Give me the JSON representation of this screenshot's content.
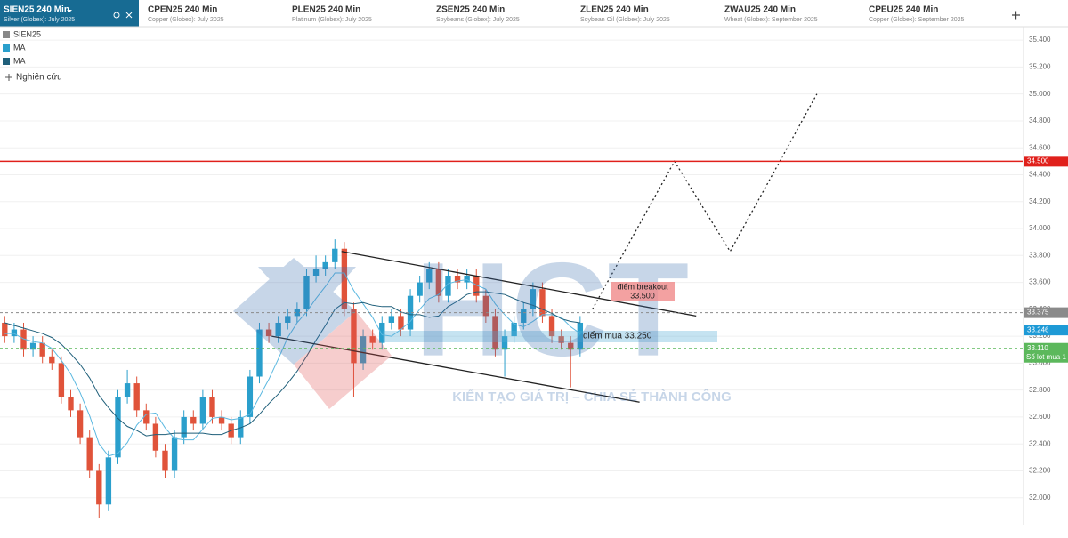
{
  "tabs": [
    {
      "title": "SIEN25 240 Min",
      "subtitle": "Silver (Globex): July 2025"
    },
    {
      "title": "CPEN25 240 Min",
      "subtitle": "Copper (Globex): July 2025"
    },
    {
      "title": "PLEN25 240 Min",
      "subtitle": "Platinum (Globex): July 2025"
    },
    {
      "title": "ZSEN25 240 Min",
      "subtitle": "Soybeans (Globex): July 2025"
    },
    {
      "title": "ZLEN25 240 Min",
      "subtitle": "Soybean Oil (Globex): July 2025"
    },
    {
      "title": "ZWAU25 240 Min",
      "subtitle": "Wheat (Globex): September 2025"
    },
    {
      "title": "CPEU25 240 Min",
      "subtitle": "Copper (Globex): September 2025"
    }
  ],
  "legend_panel": [
    "SIEN25",
    "MA",
    "MA"
  ],
  "research_button": "Nghiên cứu",
  "watermark": {
    "logo": "HCT",
    "slogan": "KIẾN TẠO GIÁ TRỊ – CHIA SẺ THÀNH CÔNG"
  },
  "annotations": {
    "breakout_title": "điểm breakout",
    "breakout_price": "33.500",
    "buy": "điểm mua 33.250"
  },
  "chart_data": {
    "type": "candlestick",
    "up_color": "#2a9fcc",
    "down_color": "#e0533a",
    "xlim": [
      -0.5,
      108
    ],
    "ylim": [
      31.8,
      35.5
    ],
    "yticks": [
      {
        "value": 32,
        "label": "32.000"
      },
      {
        "value": 32.2,
        "label": "32.200"
      },
      {
        "value": 32.4,
        "label": "32.400"
      },
      {
        "value": 32.6,
        "label": "32.600"
      },
      {
        "value": 32.8,
        "label": "32.800"
      },
      {
        "value": 33,
        "label": "33.000"
      },
      {
        "value": 33.2,
        "label": "33.200"
      },
      {
        "value": 33.4,
        "label": "33.400"
      },
      {
        "value": 33.6,
        "label": "33.600"
      },
      {
        "value": 33.8,
        "label": "33.800"
      },
      {
        "value": 34,
        "label": "34.000"
      },
      {
        "value": 34.2,
        "label": "34.200"
      },
      {
        "value": 34.4,
        "label": "34.400"
      },
      {
        "value": 34.6,
        "label": "34.600"
      },
      {
        "value": 34.8,
        "label": "34.800"
      },
      {
        "value": 35,
        "label": "35.000"
      },
      {
        "value": 35.2,
        "label": "35.200"
      },
      {
        "value": 35.4,
        "label": "35.400"
      }
    ],
    "grid": true,
    "open": [
      33.3,
      33.2,
      33.25,
      33.1,
      33.15,
      33.05,
      33.0,
      32.75,
      32.65,
      32.45,
      32.2,
      31.95,
      32.3,
      32.75,
      32.85,
      32.65,
      32.55,
      32.35,
      32.2,
      32.45,
      32.6,
      32.55,
      32.75,
      32.6,
      32.55,
      32.45,
      32.6,
      32.9,
      33.25,
      33.2,
      33.3,
      33.35,
      33.4,
      33.65,
      33.7,
      33.75,
      33.85,
      33.4,
      33.0,
      33.2,
      33.15,
      33.3,
      33.35,
      33.25,
      33.5,
      33.6,
      33.7,
      33.5,
      33.65,
      33.6,
      33.65,
      33.5,
      33.35,
      33.1,
      33.2,
      33.3,
      33.4,
      33.55,
      33.35,
      33.2,
      33.15,
      33.1
    ],
    "high": [
      33.35,
      33.3,
      33.3,
      33.2,
      33.2,
      33.1,
      33.05,
      32.8,
      32.7,
      32.5,
      32.25,
      32.35,
      32.8,
      32.95,
      32.9,
      32.7,
      32.6,
      32.4,
      32.5,
      32.65,
      32.65,
      32.8,
      32.8,
      32.65,
      32.6,
      32.65,
      32.95,
      33.3,
      33.3,
      33.35,
      33.4,
      33.45,
      33.7,
      33.8,
      33.8,
      33.92,
      33.9,
      33.45,
      33.25,
      33.25,
      33.35,
      33.4,
      33.4,
      33.55,
      33.65,
      33.75,
      33.75,
      33.7,
      33.7,
      33.7,
      33.7,
      33.55,
      33.4,
      33.25,
      33.35,
      33.45,
      33.6,
      33.6,
      33.4,
      33.25,
      33.2,
      33.35
    ],
    "low": [
      33.15,
      33.15,
      33.05,
      33.05,
      33.0,
      32.95,
      32.7,
      32.6,
      32.4,
      32.15,
      31.85,
      31.9,
      32.25,
      32.7,
      32.6,
      32.5,
      32.3,
      32.15,
      32.15,
      32.4,
      32.5,
      32.5,
      32.55,
      32.5,
      32.4,
      32.4,
      32.55,
      32.85,
      33.15,
      33.15,
      33.25,
      33.3,
      33.35,
      33.6,
      33.65,
      33.7,
      33.35,
      32.75,
      32.95,
      33.1,
      33.1,
      33.25,
      33.2,
      33.2,
      33.45,
      33.55,
      33.45,
      33.45,
      33.55,
      33.55,
      33.45,
      33.3,
      33.05,
      32.9,
      33.15,
      33.25,
      33.35,
      33.3,
      33.15,
      33.1,
      32.82,
      33.05
    ],
    "close": [
      33.2,
      33.25,
      33.1,
      33.15,
      33.05,
      33.0,
      32.75,
      32.65,
      32.45,
      32.2,
      31.95,
      32.3,
      32.75,
      32.85,
      32.65,
      32.55,
      32.35,
      32.2,
      32.45,
      32.6,
      32.55,
      32.75,
      32.6,
      32.55,
      32.45,
      32.6,
      32.9,
      33.25,
      33.2,
      33.3,
      33.35,
      33.4,
      33.65,
      33.7,
      33.75,
      33.85,
      33.4,
      33.0,
      33.2,
      33.15,
      33.3,
      33.35,
      33.25,
      33.5,
      33.6,
      33.7,
      33.5,
      33.65,
      33.6,
      33.65,
      33.5,
      33.35,
      33.1,
      33.2,
      33.3,
      33.4,
      33.55,
      33.35,
      33.2,
      33.15,
      33.1,
      33.3
    ],
    "series": [
      {
        "color": "#5bb8e0",
        "values": [
          33.22,
          33.22,
          33.18,
          33.16,
          33.15,
          33.11,
          33.02,
          32.92,
          32.78,
          32.61,
          32.4,
          32.31,
          32.33,
          32.41,
          32.54,
          32.62,
          32.63,
          32.52,
          32.44,
          32.43,
          32.43,
          32.51,
          32.59,
          32.6,
          32.58,
          32.59,
          32.62,
          32.75,
          32.88,
          33.03,
          33.19,
          33.3,
          33.38,
          33.48,
          33.57,
          33.67,
          33.67,
          33.54,
          33.44,
          33.34,
          33.21,
          33.2,
          33.25,
          33.31,
          33.4,
          33.48,
          33.51,
          33.59,
          33.61,
          33.62,
          33.58,
          33.55,
          33.44,
          33.36,
          33.29,
          33.27,
          33.31,
          33.36,
          33.36,
          33.34,
          33.27,
          33.22
        ]
      },
      {
        "color": "#1f5f7a",
        "values": [
          33.3,
          33.28,
          33.26,
          33.24,
          33.22,
          33.19,
          33.14,
          33.07,
          32.99,
          32.89,
          32.76,
          32.67,
          32.59,
          32.53,
          32.5,
          32.46,
          32.47,
          32.47,
          32.48,
          32.48,
          32.48,
          32.48,
          32.47,
          32.47,
          32.5,
          32.52,
          32.55,
          32.62,
          32.7,
          32.77,
          32.85,
          32.94,
          33.05,
          33.17,
          33.28,
          33.4,
          33.45,
          33.44,
          33.45,
          33.43,
          33.42,
          33.42,
          33.38,
          33.36,
          33.36,
          33.34,
          33.35,
          33.42,
          33.46,
          33.51,
          33.53,
          33.53,
          33.52,
          33.51,
          33.48,
          33.45,
          33.43,
          33.4,
          33.37,
          33.33,
          33.31,
          33.3
        ]
      }
    ],
    "trendlines": [
      {
        "x": [
          35.7,
          73.3
        ],
        "values": [
          33.83,
          33.35
        ]
      },
      {
        "x": [
          28.3,
          67.3
        ],
        "values": [
          33.2,
          32.71
        ]
      }
    ],
    "projection": {
      "x": [
        62.3,
        71,
        76.9,
        86.1
      ],
      "values": [
        33.4,
        34.5,
        33.83,
        35.0
      ]
    },
    "price_lines": [
      {
        "value": 34.5,
        "label": "34.500",
        "color": "#e0201b",
        "style": "solid"
      },
      {
        "value": 33.375,
        "label": "33.375",
        "color": "#8a8a8a",
        "style": "dashed"
      },
      {
        "value": 33.246,
        "label": "33.246",
        "color": "#1e9ad6",
        "style": "none"
      },
      {
        "value": 33.11,
        "label": "33.110",
        "color": "#5cb85c",
        "style": "dashed",
        "note": "Số lot mua 1"
      }
    ]
  }
}
